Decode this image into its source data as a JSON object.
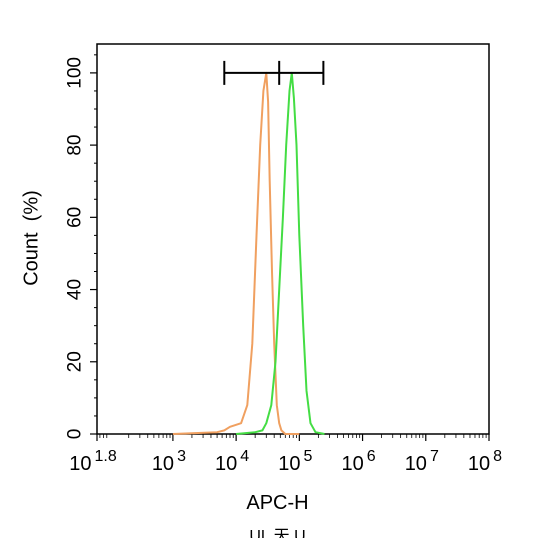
{
  "chart_data": {
    "type": "line",
    "xlabel": "APC-H",
    "ylabel": "Count  (%)",
    "xscale": "log",
    "xlim": [
      63,
      100000000
    ],
    "ylim": [
      0,
      108
    ],
    "x_ticks": [
      {
        "base": "10",
        "exp": "1.8",
        "value": 63
      },
      {
        "base": "10",
        "exp": "3",
        "value": 1000
      },
      {
        "base": "10",
        "exp": "4",
        "value": 10000
      },
      {
        "base": "10",
        "exp": "5",
        "value": 100000
      },
      {
        "base": "10",
        "exp": "6",
        "value": 1000000
      },
      {
        "base": "10",
        "exp": "7",
        "value": 10000000
      },
      {
        "base": "10",
        "exp": "8",
        "value": 100000000
      }
    ],
    "y_ticks": [
      "0",
      "20",
      "40",
      "60",
      "80",
      "100"
    ],
    "series": [
      {
        "color": "#f0a060",
        "x": [
          1000,
          5000,
          6500,
          8000,
          12000,
          15000,
          18000,
          21000,
          24000,
          27000,
          30000,
          32000,
          34000,
          37000,
          40000,
          44000,
          48000,
          52000,
          60000,
          100000
        ],
        "y": [
          0,
          0.5,
          1,
          2,
          3,
          8,
          25,
          55,
          80,
          95,
          100,
          92,
          70,
          45,
          25,
          8,
          3,
          1,
          0,
          0
        ]
      },
      {
        "color": "#44dd44",
        "x": [
          10000,
          20000,
          26000,
          30000,
          36000,
          42000,
          48000,
          55000,
          62000,
          70000,
          76000,
          82000,
          90000,
          100000,
          115000,
          130000,
          150000,
          180000,
          250000
        ],
        "y": [
          0,
          0.5,
          1,
          3,
          8,
          20,
          40,
          60,
          80,
          95,
          100,
          93,
          80,
          55,
          30,
          12,
          3,
          0.5,
          0
        ]
      }
    ],
    "gate": {
      "x_start": 6500,
      "x_mid": 48000,
      "x_end": 240000,
      "y": 100
    }
  },
  "footer_text": "UL 天 U"
}
